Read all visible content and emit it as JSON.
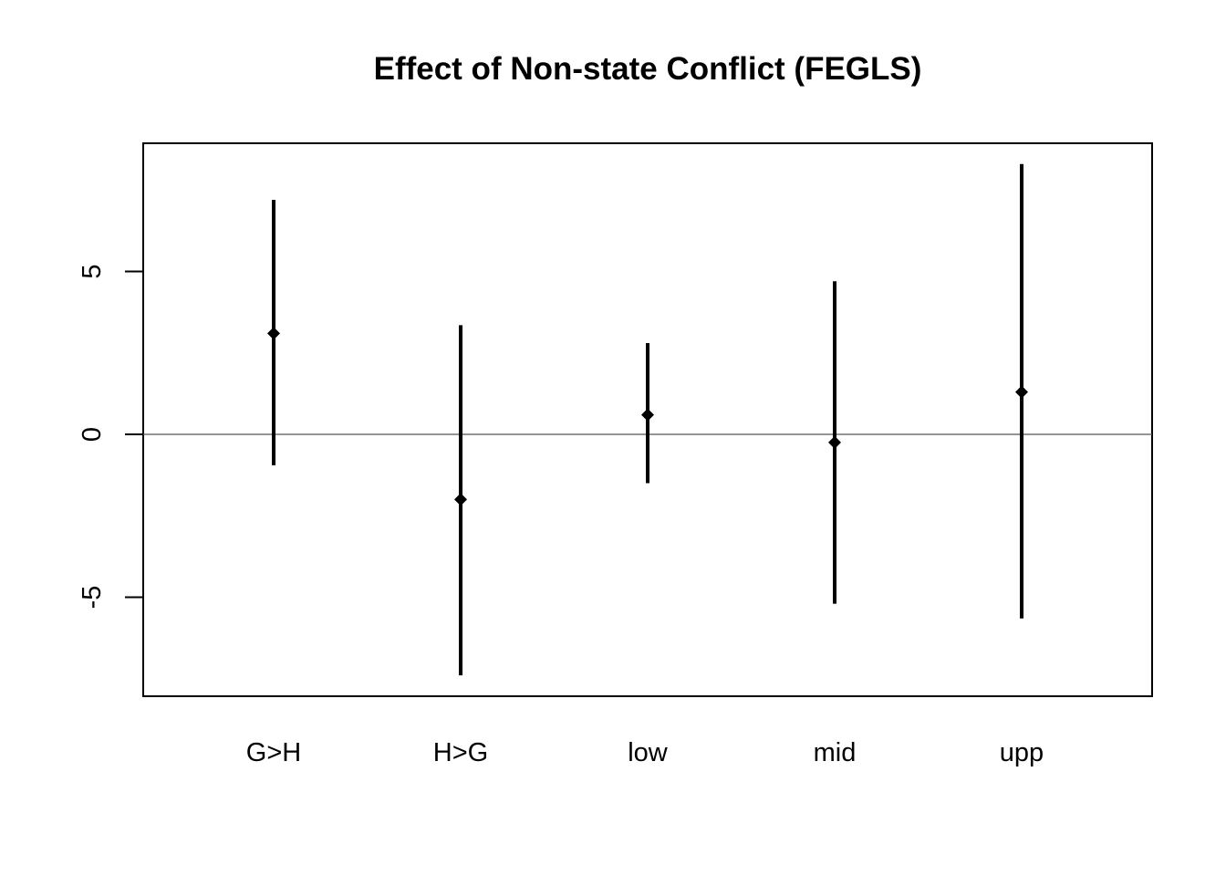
{
  "chart_data": {
    "type": "point-interval",
    "title": "Effect of Non-state Conflict (FEGLS)",
    "xlabel": "",
    "ylabel": "",
    "categories": [
      "G>H",
      "H>G",
      "low",
      "mid",
      "upp"
    ],
    "estimates": [
      3.1,
      -2.0,
      0.6,
      -0.25,
      1.3
    ],
    "lower": [
      -0.95,
      -7.4,
      -1.5,
      -5.2,
      -5.65
    ],
    "upper": [
      7.2,
      3.35,
      2.8,
      4.7,
      8.3
    ],
    "reference_line": 0,
    "yticks": [
      -5,
      0,
      5
    ],
    "ylim": [
      -8.1,
      8.9
    ],
    "grid": false,
    "colors": {
      "series": "#000000",
      "reference": "#555555",
      "frame": "#000000"
    }
  }
}
